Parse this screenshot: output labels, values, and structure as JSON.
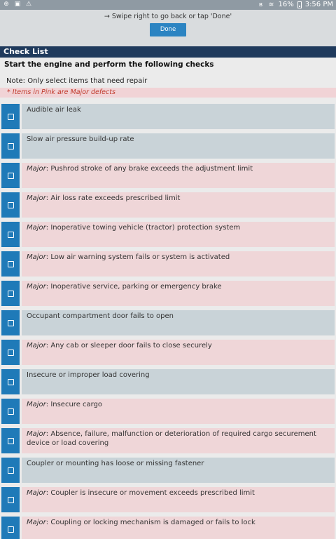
{
  "statusbar": {
    "battery_pct": "16%",
    "time": "3:56 PM",
    "left_icons": [
      "add-icon",
      "image-icon",
      "signal-icon"
    ],
    "right_icons": [
      "bluetooth-icon",
      "wifi-icon",
      "battery-icon"
    ]
  },
  "swipe": {
    "text": "→ Swipe right to go back or tap 'Done'",
    "done_label": "Done"
  },
  "header": {
    "title": "Check List"
  },
  "instruction": "Start the engine and perform the following checks",
  "note": "Note: Only select items that need repair",
  "pink_note": "* Items in Pink are Major defects",
  "major_prefix": "Major",
  "items": [
    {
      "major": false,
      "text": "Audible air leak"
    },
    {
      "major": false,
      "text": "Slow air pressure build-up rate"
    },
    {
      "major": true,
      "text": ": Pushrod stroke of any brake exceeds the adjustment limit"
    },
    {
      "major": true,
      "text": ": Air loss rate exceeds prescribed limit"
    },
    {
      "major": true,
      "text": ": Inoperative towing vehicle (tractor) protection system"
    },
    {
      "major": true,
      "text": ": Low air warning system fails or system is activated"
    },
    {
      "major": true,
      "text": ": Inoperative service, parking or emergency brake"
    },
    {
      "major": false,
      "text": "Occupant compartment door fails to open"
    },
    {
      "major": true,
      "text": ": Any cab or sleeper door fails to close securely"
    },
    {
      "major": false,
      "text": "Insecure or improper load covering"
    },
    {
      "major": true,
      "text": ": Insecure cargo"
    },
    {
      "major": true,
      "text": ": Absence, failure, malfunction or deterioration of required cargo securement device or load covering"
    },
    {
      "major": false,
      "text": "Coupler or mounting has loose or missing fastener"
    },
    {
      "major": true,
      "text": ": Coupler is insecure or movement exceeds prescribed limit"
    },
    {
      "major": true,
      "text": ": Coupling or locking mechanism is damaged or fails to lock"
    }
  ]
}
